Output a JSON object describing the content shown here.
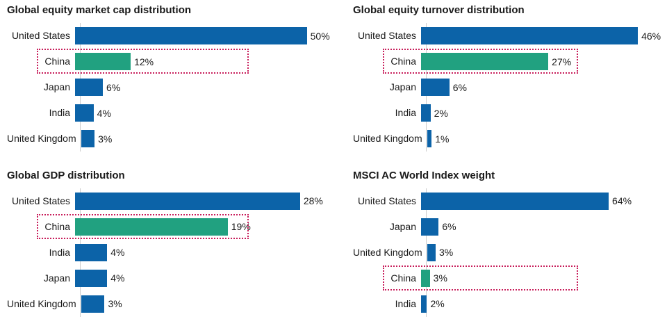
{
  "colors": {
    "bar_blue": "#0c63a8",
    "bar_green": "#21a180",
    "highlight_border": "#c81e5b",
    "axis_line": "#cccccc",
    "text": "#1a1a1a",
    "background": "#ffffff"
  },
  "chart_data": [
    {
      "type": "bar",
      "orientation": "horizontal",
      "title": "Global equity market cap distribution",
      "categories": [
        "United States",
        "China",
        "Japan",
        "India",
        "United Kingdom"
      ],
      "values": [
        50,
        12,
        6,
        4,
        3
      ],
      "value_labels": [
        "50%",
        "12%",
        "6%",
        "4%",
        "3%"
      ],
      "highlight_category": "China",
      "xlim": [
        0,
        52
      ],
      "grid": false,
      "legend": false
    },
    {
      "type": "bar",
      "orientation": "horizontal",
      "title": "Global equity turnover distribution",
      "categories": [
        "United States",
        "China",
        "Japan",
        "India",
        "United Kingdom"
      ],
      "values": [
        46,
        27,
        6,
        2,
        1
      ],
      "value_labels": [
        "46%",
        "27%",
        "6%",
        "2%",
        "1%"
      ],
      "highlight_category": "China",
      "xlim": [
        0,
        51
      ],
      "grid": false,
      "legend": false
    },
    {
      "type": "bar",
      "orientation": "horizontal",
      "title": "Global GDP distribution",
      "categories": [
        "United States",
        "China",
        "India",
        "Japan",
        "United Kingdom"
      ],
      "values": [
        28,
        19,
        4,
        4,
        3
      ],
      "value_labels": [
        "28%",
        "19%",
        "4%",
        "4%",
        "3%"
      ],
      "highlight_category": "China",
      "xlim": [
        0,
        30
      ],
      "grid": false,
      "legend": false
    },
    {
      "type": "bar",
      "orientation": "horizontal",
      "title": "MSCI AC World Index weight",
      "categories": [
        "United States",
        "Japan",
        "United Kingdom",
        "China",
        "India"
      ],
      "values": [
        64,
        6,
        3,
        3,
        2
      ],
      "value_labels": [
        "64%",
        "6%",
        "3%",
        "3%",
        "2%"
      ],
      "highlight_category": "China",
      "xlim": [
        0,
        82
      ],
      "grid": false,
      "legend": false
    }
  ]
}
